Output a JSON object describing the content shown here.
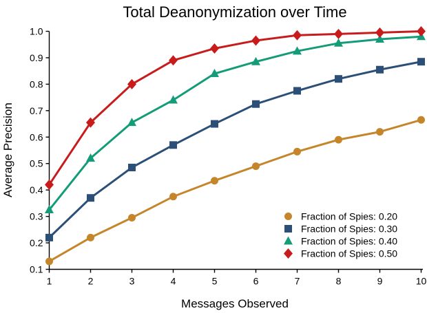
{
  "chart": {
    "title": "Total Deanonymization over Time",
    "xlabel": "Messages Observed",
    "ylabel": "Average Precision",
    "x_tick_labels": [
      "1",
      "2",
      "3",
      "4",
      "5",
      "6",
      "7",
      "8",
      "9",
      "10"
    ],
    "y_tick_labels": [
      "0.1",
      "0.2",
      "0.3",
      "0.4",
      "0.5",
      "0.6",
      "0.7",
      "0.8",
      "0.9",
      "1.0"
    ],
    "background": "#ffffff",
    "text_color": "#000000"
  },
  "chart_data": {
    "type": "line",
    "title": "Total Deanonymization over Time",
    "xlabel": "Messages Observed",
    "ylabel": "Average Precision",
    "x": [
      1,
      2,
      3,
      4,
      5,
      6,
      7,
      8,
      9,
      10
    ],
    "xlim": [
      1,
      10
    ],
    "ylim": [
      0.1,
      1.0
    ],
    "grid": false,
    "legend_position": "lower right",
    "series": [
      {
        "name": "Fraction of Spies: 0.20",
        "color": "#C5862B",
        "marker": "circle",
        "values": [
          0.13,
          0.22,
          0.295,
          0.375,
          0.435,
          0.49,
          0.545,
          0.59,
          0.62,
          0.665
        ]
      },
      {
        "name": "Fraction of Spies: 0.30",
        "color": "#2B4F76",
        "marker": "square",
        "values": [
          0.22,
          0.37,
          0.485,
          0.57,
          0.65,
          0.725,
          0.775,
          0.82,
          0.855,
          0.885
        ]
      },
      {
        "name": "Fraction of Spies: 0.40",
        "color": "#149B77",
        "marker": "triangle-up",
        "values": [
          0.325,
          0.52,
          0.655,
          0.74,
          0.84,
          0.885,
          0.925,
          0.955,
          0.97,
          0.98
        ]
      },
      {
        "name": "Fraction of Spies: 0.50",
        "color": "#C81C1C",
        "marker": "diamond",
        "values": [
          0.42,
          0.655,
          0.8,
          0.89,
          0.935,
          0.965,
          0.985,
          0.99,
          0.995,
          1.0
        ]
      }
    ]
  }
}
